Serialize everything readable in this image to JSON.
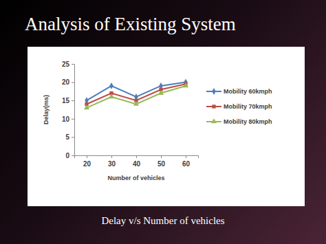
{
  "slide": {
    "title": "Analysis of Existing System",
    "caption": "Delay v/s Number of vehicles"
  },
  "chart_data": {
    "type": "line",
    "x_label": "Number of vehicles",
    "y_label": "Delay(ms)",
    "categories": [
      "20",
      "30",
      "40",
      "50",
      "60"
    ],
    "series": [
      {
        "name": "Mobility 60kmph",
        "color": "#4a7ebb",
        "marker": "diamond",
        "values": [
          15,
          19,
          16,
          19,
          20
        ]
      },
      {
        "name": "Mobility 70kmph",
        "color": "#be4b48",
        "marker": "square",
        "values": [
          14,
          17,
          15,
          18,
          19.5
        ]
      },
      {
        "name": "Mobility 80kmph",
        "color": "#98b954",
        "marker": "triangle",
        "values": [
          13,
          16,
          14,
          17,
          19
        ]
      }
    ],
    "ylim": [
      0,
      25
    ],
    "yticks": [
      0,
      5,
      10,
      15,
      20,
      25
    ],
    "grid": false,
    "legend": "right"
  }
}
